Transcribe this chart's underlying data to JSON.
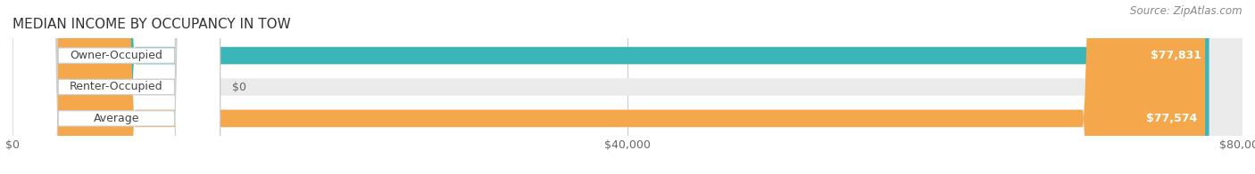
{
  "title": "MEDIAN INCOME BY OCCUPANCY IN TOW",
  "source": "Source: ZipAtlas.com",
  "categories": [
    "Owner-Occupied",
    "Renter-Occupied",
    "Average"
  ],
  "values": [
    77831,
    0,
    77574
  ],
  "bar_colors": [
    "#3ab5b8",
    "#c9a8d4",
    "#f5a74b"
  ],
  "bar_labels": [
    "$77,831",
    "$0",
    "$77,574"
  ],
  "xlim": [
    0,
    80000
  ],
  "xticks": [
    0,
    40000,
    80000
  ],
  "xtick_labels": [
    "$0",
    "$40,000",
    "$80,000"
  ],
  "background_color": "#ffffff",
  "bar_bg_color": "#ebebeb",
  "title_fontsize": 11,
  "label_fontsize": 9,
  "value_fontsize": 9,
  "source_fontsize": 8.5
}
